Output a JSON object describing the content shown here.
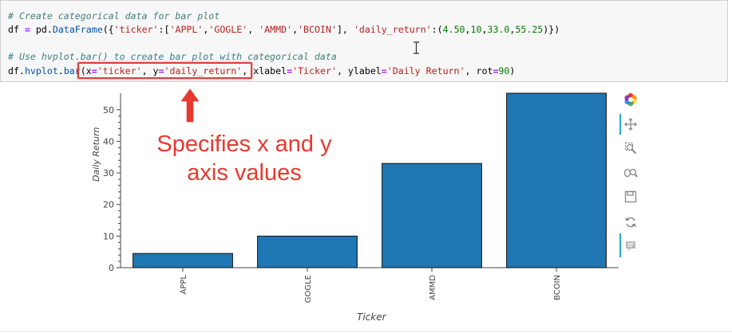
{
  "code": {
    "comment1": "# Create categorical data for bar plot",
    "line1_parts": {
      "df": "df",
      "eq": " = ",
      "pd": "pd",
      "dot": ".",
      "func": "DataFrame",
      "open": "({",
      "key1": "'ticker'",
      "colon1": ":[",
      "v1": "'APPL'",
      "sep1": ",",
      "v2": "'GOGLE'",
      "sep2": ", ",
      "v3": "'AMMD'",
      "sep3": ",",
      "v4": "'BCOIN'",
      "close1": "], ",
      "key2": "'daily_return'",
      "colon2": ":(",
      "n1": "4.50",
      "c1": ",",
      "n2": "10",
      "c2": ",",
      "n3": "33.0",
      "c3": ",",
      "n4": "55.25",
      "close2": ")})"
    },
    "comment2": "# Use hvplot.bar() to create bar plot with categorical data",
    "line2_parts": {
      "df": "df",
      "dot": ".",
      "hv": "hvplot",
      "dot2": ".",
      "bar": "bar",
      "open": "(",
      "x": "x",
      "eq1": "=",
      "xval": "'ticker'",
      "s1": ", ",
      "y": "y",
      "eq2": "=",
      "yval": "'daily_return'",
      "s2": ", ",
      "xl": "xlabel",
      "eq3": "=",
      "xlval": "'Ticker'",
      "s3": ", ",
      "yl": "ylabel",
      "eq4": "=",
      "ylval": "'Daily Return'",
      "s4": ", ",
      "rot": "rot",
      "eq5": "=",
      "rotval": "90",
      "close": ")"
    }
  },
  "annotation": {
    "line1": "Specifies x and y",
    "line2": "axis values",
    "color": "#e8392f"
  },
  "chart_data": {
    "type": "bar",
    "categories": [
      "APPL",
      "GOGLE",
      "AMMD",
      "BCOIN"
    ],
    "values": [
      4.5,
      10,
      33.0,
      55.25
    ],
    "xlabel": "Ticker",
    "ylabel": "Daily Return",
    "ylim": [
      0,
      55.25
    ],
    "yticks": [
      0,
      10,
      20,
      30,
      40,
      50
    ],
    "bar_color": "#1f77b4",
    "grid": false
  },
  "toolbar": {
    "tools": [
      "bokeh-logo-icon",
      "pan-icon",
      "box-zoom-icon",
      "wheel-zoom-icon",
      "save-icon",
      "reset-icon",
      "hover-icon"
    ]
  }
}
